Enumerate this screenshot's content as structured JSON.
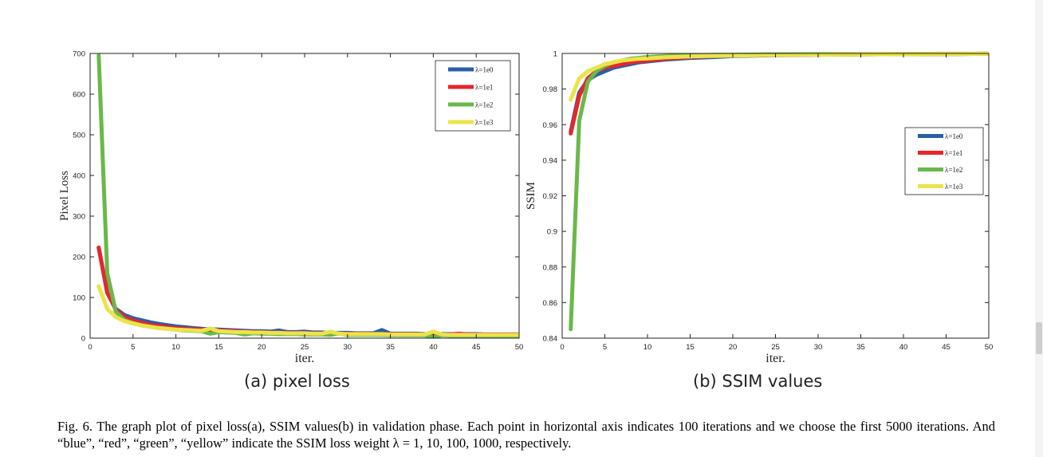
{
  "chart_data": [
    {
      "type": "line",
      "xlabel": "iter.",
      "ylabel": "Pixel Loss",
      "xlim": [
        0,
        50
      ],
      "ylim": [
        0,
        700
      ],
      "xticks": [
        0,
        5,
        10,
        15,
        20,
        25,
        30,
        35,
        40,
        45,
        50
      ],
      "yticks": [
        0,
        100,
        200,
        300,
        400,
        500,
        600,
        700
      ],
      "grid": false,
      "legend_position": "top-right",
      "series": [
        {
          "name": "λ=1e0",
          "color": "#2a5ea6",
          "x": [
            1,
            2,
            3,
            4,
            5,
            6,
            7,
            8,
            9,
            10,
            11,
            12,
            13,
            14,
            15,
            16,
            17,
            18,
            19,
            20,
            21,
            22,
            23,
            24,
            25,
            26,
            27,
            28,
            29,
            30,
            31,
            32,
            33,
            34,
            35,
            36,
            37,
            38,
            39,
            40,
            41,
            42,
            43,
            44,
            45,
            46,
            47,
            48,
            49,
            50
          ],
          "y": [
            222,
            112,
            72,
            57,
            49,
            44,
            39,
            35,
            32,
            29,
            27,
            25,
            23,
            22,
            21,
            20,
            19,
            18,
            17,
            17,
            16,
            19,
            15,
            15,
            16,
            14,
            14,
            13,
            13,
            13,
            12,
            12,
            12,
            20,
            11,
            11,
            11,
            11,
            10,
            10,
            10,
            10,
            10,
            10,
            10,
            9,
            9,
            9,
            9,
            9
          ]
        },
        {
          "name": "λ=1e1",
          "color": "#e8262a",
          "x": [
            1,
            2,
            3,
            4,
            5,
            6,
            7,
            8,
            9,
            10,
            11,
            12,
            13,
            14,
            15,
            16,
            17,
            18,
            19,
            20,
            21,
            22,
            23,
            24,
            25,
            26,
            27,
            28,
            29,
            30,
            31,
            32,
            33,
            34,
            35,
            36,
            37,
            38,
            39,
            40,
            41,
            42,
            43,
            44,
            45,
            46,
            47,
            48,
            49,
            50
          ],
          "y": [
            223,
            112,
            70,
            52,
            44,
            38,
            33,
            30,
            27,
            25,
            23,
            22,
            21,
            20,
            19,
            18,
            17,
            16,
            15,
            15,
            14,
            14,
            13,
            13,
            13,
            12,
            12,
            12,
            11,
            11,
            11,
            11,
            10,
            10,
            10,
            10,
            10,
            10,
            9,
            9,
            9,
            9,
            11,
            9,
            9,
            9,
            9,
            9,
            9,
            9
          ]
        },
        {
          "name": "λ=1e2",
          "color": "#6ab84a",
          "x": [
            1,
            2,
            3,
            4,
            5,
            6,
            7,
            8,
            9,
            10,
            11,
            12,
            13,
            14,
            15,
            16,
            17,
            18,
            19,
            20,
            21,
            22,
            23,
            24,
            25,
            26,
            27,
            28,
            29,
            30,
            31,
            32,
            33,
            34,
            35,
            36,
            37,
            38,
            39,
            40,
            41,
            42,
            43,
            44,
            45,
            46,
            47,
            48,
            49,
            50
          ],
          "y": [
            695,
            160,
            65,
            45,
            37,
            32,
            28,
            25,
            23,
            21,
            19,
            18,
            17,
            11,
            15,
            14,
            13,
            9,
            12,
            11,
            11,
            10,
            10,
            10,
            9,
            9,
            9,
            8,
            12,
            8,
            8,
            8,
            8,
            8,
            7,
            7,
            7,
            7,
            7,
            3,
            7,
            6,
            6,
            6,
            6,
            6,
            6,
            6,
            6,
            6
          ]
        },
        {
          "name": "λ=1e3",
          "color": "#ece34a",
          "x": [
            1,
            2,
            3,
            4,
            5,
            6,
            7,
            8,
            9,
            10,
            11,
            12,
            13,
            14,
            15,
            16,
            17,
            18,
            19,
            20,
            21,
            22,
            23,
            24,
            25,
            26,
            27,
            28,
            29,
            30,
            31,
            32,
            33,
            34,
            35,
            36,
            37,
            38,
            39,
            40,
            41,
            42,
            43,
            44,
            45,
            46,
            47,
            48,
            49,
            50
          ],
          "y": [
            128,
            72,
            52,
            42,
            36,
            31,
            28,
            25,
            23,
            21,
            20,
            19,
            18,
            24,
            17,
            16,
            15,
            15,
            14,
            14,
            13,
            13,
            12,
            12,
            12,
            11,
            11,
            16,
            11,
            10,
            10,
            10,
            10,
            10,
            9,
            9,
            9,
            9,
            9,
            16,
            9,
            8,
            8,
            8,
            8,
            8,
            8,
            8,
            8,
            8
          ]
        }
      ]
    },
    {
      "type": "line",
      "xlabel": "iter.",
      "ylabel": "SSIM",
      "xlim": [
        0,
        50
      ],
      "ylim": [
        0.84,
        1.0
      ],
      "xticks": [
        0,
        5,
        10,
        15,
        20,
        25,
        30,
        35,
        40,
        45,
        50
      ],
      "yticks": [
        0.84,
        0.86,
        0.88,
        0.9,
        0.92,
        0.94,
        0.96,
        0.98,
        1
      ],
      "grid": false,
      "legend_position": "right",
      "series": [
        {
          "name": "λ=1e0",
          "color": "#2a5ea6",
          "x": [
            1,
            2,
            3,
            4,
            5,
            6,
            7,
            8,
            9,
            10,
            12,
            15,
            18,
            20,
            25,
            30,
            35,
            40,
            45,
            50
          ],
          "y": [
            0.956,
            0.978,
            0.985,
            0.988,
            0.99,
            0.992,
            0.993,
            0.994,
            0.995,
            0.9955,
            0.9965,
            0.9975,
            0.998,
            0.9985,
            0.999,
            0.9993,
            0.9995,
            0.9996,
            0.9997,
            0.9998
          ]
        },
        {
          "name": "λ=1e1",
          "color": "#e8262a",
          "x": [
            1,
            2,
            3,
            4,
            5,
            6,
            7,
            8,
            9,
            10,
            12,
            15,
            18,
            20,
            25,
            30,
            35,
            40,
            45,
            50
          ],
          "y": [
            0.955,
            0.976,
            0.986,
            0.99,
            0.992,
            0.993,
            0.994,
            0.995,
            0.9955,
            0.996,
            0.997,
            0.998,
            0.9985,
            0.999,
            0.9992,
            0.9994,
            0.9995,
            0.9996,
            0.9997,
            0.9998
          ]
        },
        {
          "name": "λ=1e2",
          "color": "#6ab84a",
          "x": [
            1,
            2,
            3,
            4,
            5,
            6,
            7,
            8,
            9,
            10,
            12,
            15,
            18,
            20,
            25,
            30,
            35,
            40,
            45,
            50
          ],
          "y": [
            0.845,
            0.962,
            0.984,
            0.99,
            0.993,
            0.995,
            0.996,
            0.997,
            0.9975,
            0.998,
            0.9985,
            0.999,
            0.9992,
            0.9993,
            0.9995,
            0.9996,
            0.9997,
            0.9997,
            0.9998,
            0.9998
          ]
        },
        {
          "name": "λ=1e3",
          "color": "#ece34a",
          "x": [
            1,
            2,
            3,
            4,
            5,
            6,
            7,
            8,
            9,
            10,
            12,
            15,
            18,
            20,
            25,
            30,
            35,
            40,
            45,
            50
          ],
          "y": [
            0.974,
            0.986,
            0.99,
            0.992,
            0.994,
            0.995,
            0.996,
            0.9965,
            0.997,
            0.9972,
            0.9978,
            0.9983,
            0.9986,
            0.9988,
            0.9991,
            0.9993,
            0.9995,
            0.9996,
            0.9997,
            0.9998
          ]
        }
      ]
    }
  ],
  "captions": {
    "sub_a": "(a) pixel loss",
    "sub_b": "(b) SSIM values",
    "figure": "Fig. 6.  The graph plot of pixel loss(a), SSIM values(b) in validation phase. Each point in horizontal axis indicates 100 iterations and we choose the first 5000 iterations. And “blue”, “red”, “green”, “yellow” indicate the SSIM loss weight λ = 1, 10, 100, 1000, respectively."
  }
}
